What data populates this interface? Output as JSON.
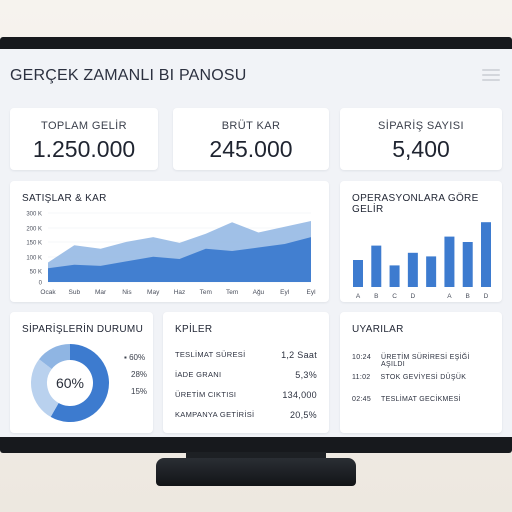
{
  "dashboard": {
    "title": "GERÇEK ZAMANLI BI PANOSU"
  },
  "kpis": [
    {
      "label": "TOPLAM GELİR",
      "value": "1.250.000"
    },
    {
      "label": "BRÜT KAR",
      "value": "245.000"
    },
    {
      "label": "SİPARİŞ SAYISI",
      "value": "5,400"
    }
  ],
  "sales_chart": {
    "title": "SATIŞLAR & KAR",
    "y_ticks": [
      "300 K",
      "200 K",
      "150 K",
      "100 K",
      "50 K",
      "0"
    ],
    "months": [
      "Ocak",
      "Sub",
      "Mar",
      "Nis",
      "May",
      "Haz",
      "Tem",
      "Tem",
      "Ağu",
      "Eyl",
      "Eyl"
    ]
  },
  "ops_chart": {
    "title": "OPERASYONLARA GÖRE GELİR",
    "labels": [
      "A",
      "B",
      "C",
      "D",
      "",
      "A",
      "B",
      "D"
    ]
  },
  "order_status": {
    "title": "SİPARİŞLERİN DURUMU",
    "center": "60%",
    "legend": [
      "60%",
      "28%",
      "15%"
    ]
  },
  "kpi_list": {
    "title": "KPİLER",
    "rows": [
      {
        "label": "TESLİMAT SÜRESİ",
        "value": "1,2 Saat"
      },
      {
        "label": "İADE GRANI",
        "value": "5,3%"
      },
      {
        "label": "ÜRETİM CIKTISI",
        "value": "134,000"
      },
      {
        "label": "KAMPANYA GETİRİSİ",
        "value": "20,5%"
      }
    ]
  },
  "alerts": {
    "title": "UYARILAR",
    "rows": [
      {
        "time": "10:24",
        "text": "ÜRETİM SÜRİRESİ EŞİĞİ AŞILDI"
      },
      {
        "time": "11:02",
        "text": "STOK GEVİYESİ DÜŞÜK"
      },
      {
        "time": "02:45",
        "text": "TESLİMAT GECİKMESİ"
      }
    ]
  },
  "colors": {
    "accent": "#3d7bcf",
    "accent_light": "#8fb5e3",
    "accent_pale": "#b9d1ee"
  },
  "chart_data": [
    {
      "type": "area",
      "title": "SATIŞLAR & KAR",
      "categories": [
        "Ocak",
        "Sub",
        "Mar",
        "Nis",
        "May",
        "Haz",
        "Tem",
        "Tem",
        "Ağu",
        "Eyl",
        "Eyl"
      ],
      "y_ticks": [
        "300 K",
        "200 K",
        "150 K",
        "100 K",
        "50 K",
        "0"
      ],
      "series": [
        {
          "values": [
            85,
            160,
            145,
            175,
            195,
            170,
            210,
            260,
            215,
            240,
            265
          ]
        },
        {
          "values": [
            60,
            75,
            70,
            90,
            110,
            100,
            145,
            135,
            150,
            165,
            195
          ]
        }
      ],
      "ylim": [
        0,
        300
      ]
    },
    {
      "type": "bar",
      "title": "OPERASYONLARA GÖRE GELİR",
      "categories": [
        "A",
        "B",
        "C",
        "D",
        "",
        "A",
        "B",
        "D"
      ],
      "values": [
        30,
        46,
        24,
        38,
        34,
        56,
        50,
        72
      ],
      "ylim": [
        0,
        80
      ]
    },
    {
      "type": "pie",
      "title": "SİPARİŞLERİN DURUMU",
      "values": [
        60,
        28,
        15
      ],
      "labels": [
        "60%",
        "28%",
        "15%"
      ]
    }
  ]
}
